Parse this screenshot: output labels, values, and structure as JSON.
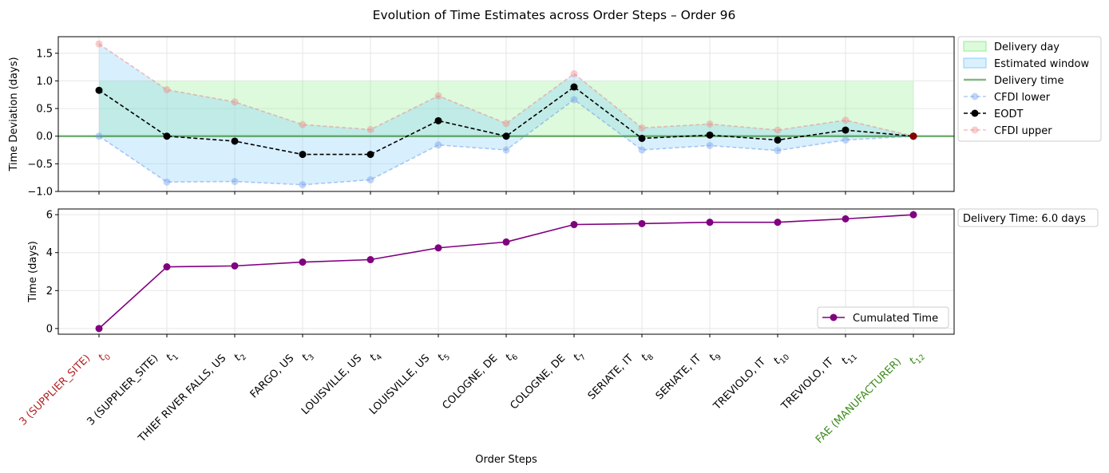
{
  "title": "Evolution of Time Estimates across Order Steps – Order 96",
  "chart_data": [
    {
      "type": "line",
      "ylabel": "Time Deviation (days)",
      "ylim": [
        -1.0,
        1.8
      ],
      "yticks": [
        -1.0,
        -0.5,
        0.0,
        0.5,
        1.0,
        1.5
      ],
      "grid": true,
      "legend_position": "outside-upper-right",
      "delivery_day_band": [
        0,
        1
      ],
      "delivery_time_line": 0,
      "series": [
        {
          "name": "CFDI lower",
          "values": [
            0.0,
            -0.83,
            -0.82,
            -0.88,
            -0.79,
            -0.16,
            -0.25,
            0.66,
            -0.25,
            -0.17,
            -0.26,
            -0.07,
            0.0
          ]
        },
        {
          "name": "EODT",
          "values": [
            0.83,
            0.0,
            -0.09,
            -0.33,
            -0.33,
            0.28,
            0.0,
            0.89,
            -0.04,
            0.02,
            -0.07,
            0.11,
            0.0
          ]
        },
        {
          "name": "CFDI upper",
          "values": [
            1.67,
            0.84,
            0.62,
            0.21,
            0.12,
            0.73,
            0.23,
            1.13,
            0.15,
            0.22,
            0.11,
            0.29,
            0.0
          ]
        }
      ],
      "legend": [
        "Delivery day",
        "Estimated window",
        "Delivery time",
        "CFDI lower",
        "EODT",
        "CFDI upper"
      ]
    },
    {
      "type": "line",
      "xlabel": "Order Steps",
      "ylabel": "Time (days)",
      "ylim": [
        -0.3,
        6.3
      ],
      "yticks": [
        0,
        2,
        4,
        6
      ],
      "grid": true,
      "legend_position": "lower-right",
      "series": [
        {
          "name": "Cumulated Time",
          "values": [
            0.0,
            3.25,
            3.3,
            3.5,
            3.63,
            4.25,
            4.56,
            5.48,
            5.53,
            5.6,
            5.6,
            5.78,
            6.0
          ]
        }
      ],
      "annotation": "Delivery Time: 6.0 days"
    }
  ],
  "x_categories": [
    {
      "label": "3 (SUPPLIER_SITE)",
      "t": "t",
      "sub": "0",
      "color": "#b22222"
    },
    {
      "label": "3 (SUPPLIER_SITE)",
      "t": "t",
      "sub": "1",
      "color": "#000000"
    },
    {
      "label": "THIEF RIVER FALLS, US",
      "t": "t",
      "sub": "2",
      "color": "#000000"
    },
    {
      "label": "FARGO, US",
      "t": "t",
      "sub": "3",
      "color": "#000000"
    },
    {
      "label": "LOUISVILLE, US",
      "t": "t",
      "sub": "4",
      "color": "#000000"
    },
    {
      "label": "LOUISVILLE, US",
      "t": "t",
      "sub": "5",
      "color": "#000000"
    },
    {
      "label": "COLOGNE, DE",
      "t": "t",
      "sub": "6",
      "color": "#000000"
    },
    {
      "label": "COLOGNE, DE",
      "t": "t",
      "sub": "7",
      "color": "#000000"
    },
    {
      "label": "SERIATE, IT",
      "t": "t",
      "sub": "8",
      "color": "#000000"
    },
    {
      "label": "SERIATE, IT",
      "t": "t",
      "sub": "9",
      "color": "#000000"
    },
    {
      "label": "TREVIOLO, IT",
      "t": "t",
      "sub": "10",
      "color": "#000000"
    },
    {
      "label": "TREVIOLO, IT",
      "t": "t",
      "sub": "11",
      "color": "#000000"
    },
    {
      "label": "FAE (MANUFACTURER)",
      "t": "t",
      "sub": "12",
      "color": "#3a8a1a"
    }
  ],
  "colors": {
    "delivery_day": "#90ee90",
    "estimated_window": "#87cefa",
    "delivery_time": "#2e8b2e",
    "cfdi_lower": "#6495ed",
    "eodt": "#000000",
    "cfdi_upper": "#f08080",
    "cumulated": "#800080",
    "final_marker": "#8b0000"
  }
}
